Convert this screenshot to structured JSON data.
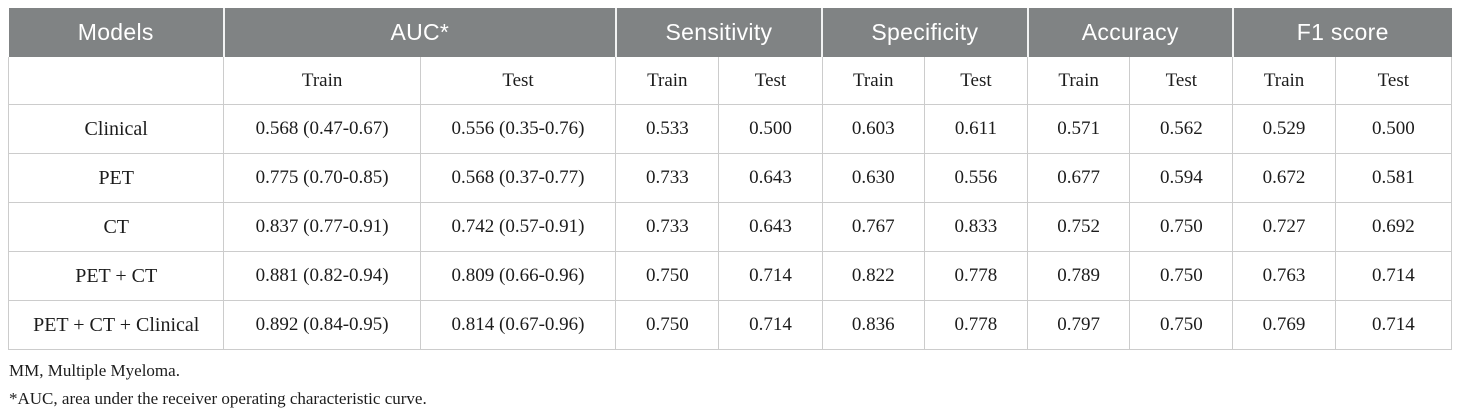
{
  "table": {
    "header_bg_color": "#808384",
    "header_text_color": "#ffffff",
    "border_color": "#cccccc",
    "column_groups": [
      {
        "label": "Models",
        "span": 1
      },
      {
        "label": "AUC*",
        "span": 2
      },
      {
        "label": "Sensitivity",
        "span": 2
      },
      {
        "label": "Specificity",
        "span": 2
      },
      {
        "label": "Accuracy",
        "span": 2
      },
      {
        "label": "F1 score",
        "span": 2
      }
    ],
    "subheaders": [
      "",
      "Train",
      "Test",
      "Train",
      "Test",
      "Train",
      "Test",
      "Train",
      "Test",
      "Train",
      "Test"
    ],
    "rows": [
      {
        "model": "Clinical",
        "values": [
          "0.568 (0.47-0.67)",
          "0.556 (0.35-0.76)",
          "0.533",
          "0.500",
          "0.603",
          "0.611",
          "0.571",
          "0.562",
          "0.529",
          "0.500"
        ]
      },
      {
        "model": "PET",
        "values": [
          "0.775 (0.70-0.85)",
          "0.568 (0.37-0.77)",
          "0.733",
          "0.643",
          "0.630",
          "0.556",
          "0.677",
          "0.594",
          "0.672",
          "0.581"
        ]
      },
      {
        "model": "CT",
        "values": [
          "0.837 (0.77-0.91)",
          "0.742 (0.57-0.91)",
          "0.733",
          "0.643",
          "0.767",
          "0.833",
          "0.752",
          "0.750",
          "0.727",
          "0.692"
        ]
      },
      {
        "model": "PET + CT",
        "values": [
          "0.881 (0.82-0.94)",
          "0.809 (0.66-0.96)",
          "0.750",
          "0.714",
          "0.822",
          "0.778",
          "0.789",
          "0.750",
          "0.763",
          "0.714"
        ]
      },
      {
        "model": "PET + CT + Clinical",
        "values": [
          "0.892 (0.84-0.95)",
          "0.814 (0.67-0.96)",
          "0.750",
          "0.714",
          "0.836",
          "0.778",
          "0.797",
          "0.750",
          "0.769",
          "0.714"
        ]
      }
    ]
  },
  "footnotes": [
    "MM, Multiple Myeloma.",
    "*AUC, area under the receiver operating characteristic curve."
  ]
}
